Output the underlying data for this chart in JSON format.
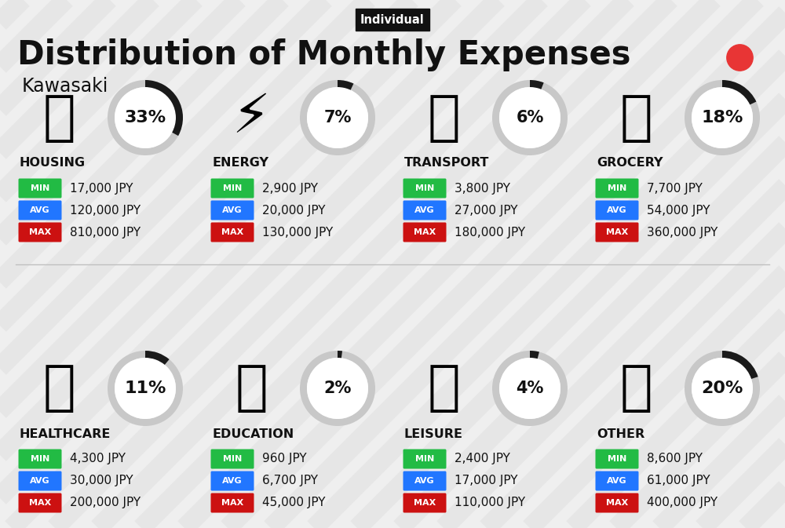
{
  "title": "Distribution of Monthly Expenses",
  "subtitle": "Individual",
  "city": "Kawasaki",
  "background_color": "#efefef",
  "title_color": "#111111",
  "categories": [
    {
      "name": "HOUSING",
      "pct": 33,
      "min_val": "17,000 JPY",
      "avg_val": "120,000 JPY",
      "max_val": "810,000 JPY",
      "row": 0,
      "col": 0
    },
    {
      "name": "ENERGY",
      "pct": 7,
      "min_val": "2,900 JPY",
      "avg_val": "20,000 JPY",
      "max_val": "130,000 JPY",
      "row": 0,
      "col": 1
    },
    {
      "name": "TRANSPORT",
      "pct": 6,
      "min_val": "3,800 JPY",
      "avg_val": "27,000 JPY",
      "max_val": "180,000 JPY",
      "row": 0,
      "col": 2
    },
    {
      "name": "GROCERY",
      "pct": 18,
      "min_val": "7,700 JPY",
      "avg_val": "54,000 JPY",
      "max_val": "360,000 JPY",
      "row": 0,
      "col": 3
    },
    {
      "name": "HEALTHCARE",
      "pct": 11,
      "min_val": "4,300 JPY",
      "avg_val": "30,000 JPY",
      "max_val": "200,000 JPY",
      "row": 1,
      "col": 0
    },
    {
      "name": "EDUCATION",
      "pct": 2,
      "min_val": "960 JPY",
      "avg_val": "6,700 JPY",
      "max_val": "45,000 JPY",
      "row": 1,
      "col": 1
    },
    {
      "name": "LEISURE",
      "pct": 4,
      "min_val": "2,400 JPY",
      "avg_val": "17,000 JPY",
      "max_val": "110,000 JPY",
      "row": 1,
      "col": 2
    },
    {
      "name": "OTHER",
      "pct": 20,
      "min_val": "8,600 JPY",
      "avg_val": "61,000 JPY",
      "max_val": "400,000 JPY",
      "row": 1,
      "col": 3
    }
  ],
  "min_color": "#22bb44",
  "avg_color": "#2176ff",
  "max_color": "#cc1111",
  "donut_dark": "#1a1a1a",
  "donut_gray": "#c8c8c8",
  "red_dot_color": "#e83535",
  "stripe_color": "#e0e0e0"
}
